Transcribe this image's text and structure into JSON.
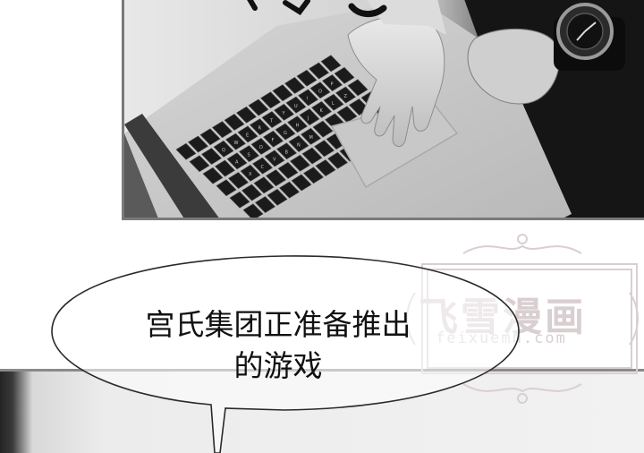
{
  "bubble": {
    "lines": [
      "宫氏集团正准备推出",
      "的游戏"
    ]
  },
  "watermark": {
    "title": "飞雪漫画",
    "url": "feixuemh.com"
  },
  "panel_top": {
    "keyboard_keys": [
      "Q",
      "W",
      "E",
      "R",
      "T",
      "Y",
      "U",
      "I",
      "O",
      "P",
      "A",
      "S",
      "D",
      "F",
      "G",
      "H",
      "J",
      "K",
      "L",
      "Z",
      "X",
      "C",
      "V",
      "B",
      "N",
      "M"
    ]
  },
  "colors": {
    "panel_border": "#7a7a7a",
    "watermark": "#d9cfd1",
    "bubble_outline": "#2a2a2a"
  }
}
